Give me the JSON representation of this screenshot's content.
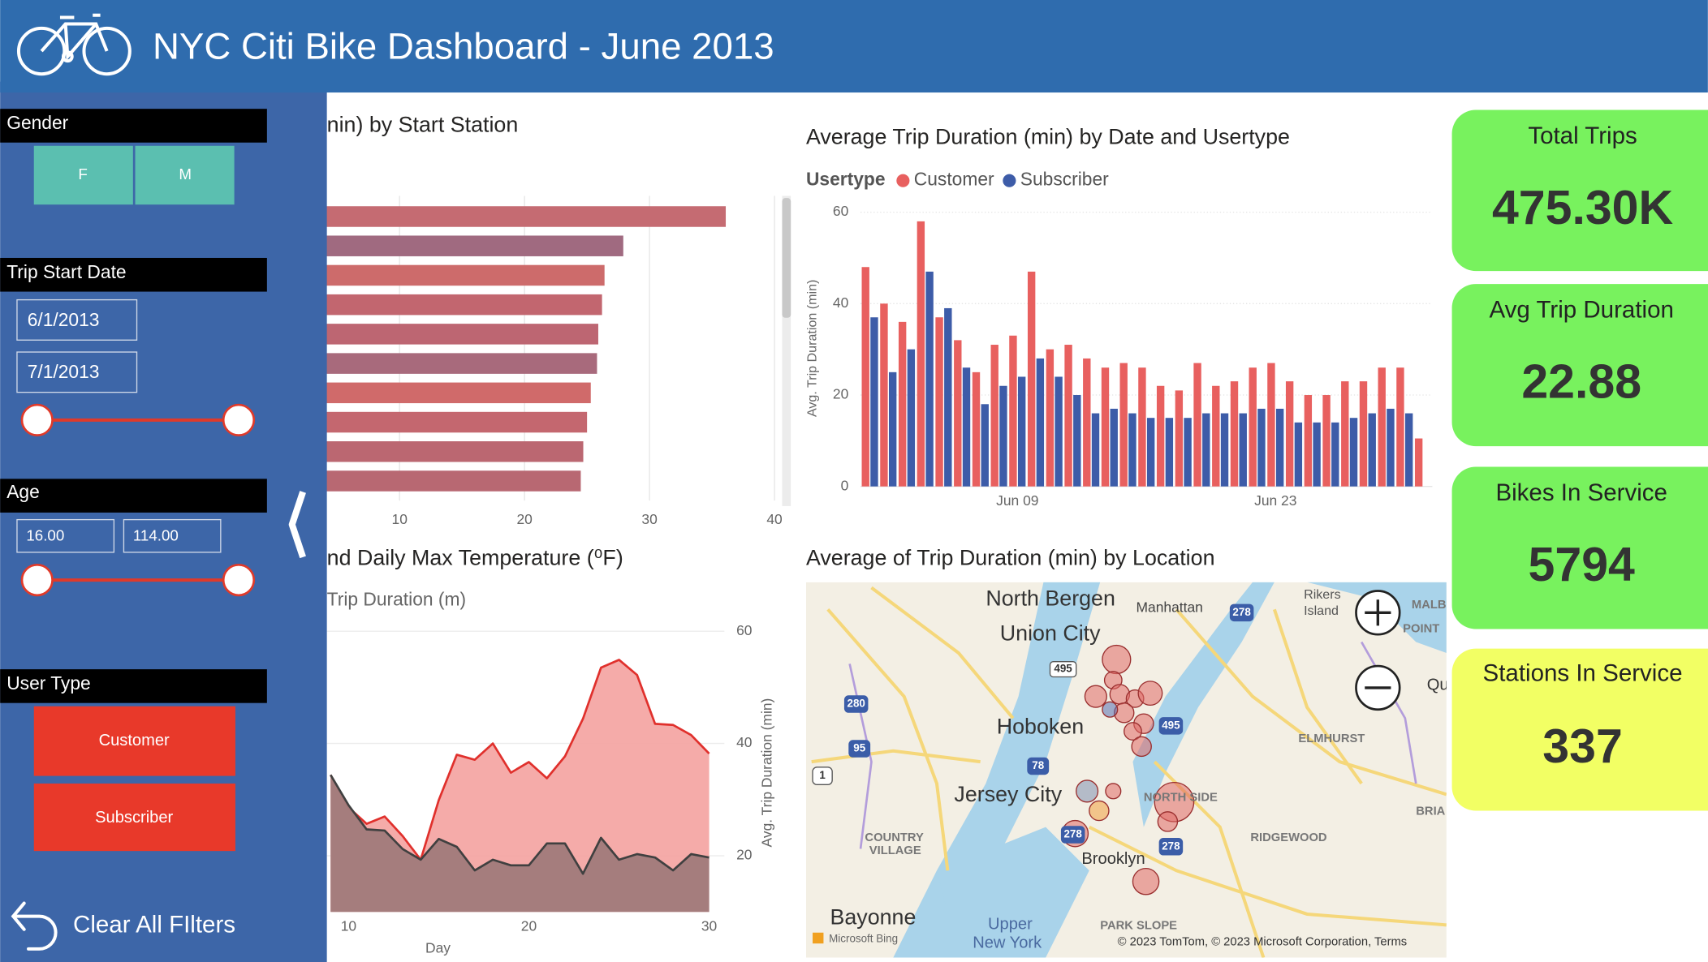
{
  "header": {
    "title": "NYC Citi Bike Dashboard - June 2013"
  },
  "filters": {
    "gender": {
      "label": "Gender",
      "options": [
        "F",
        "M"
      ]
    },
    "date": {
      "label": "Trip Start Date",
      "start": "6/1/2013",
      "end": "7/1/2013"
    },
    "age": {
      "label": "Age",
      "min": "16.00",
      "max": "114.00"
    },
    "user_type": {
      "label": "User Type",
      "options": [
        "Customer",
        "Subscriber"
      ]
    },
    "clear": "Clear All FIlters"
  },
  "chart_data": [
    {
      "type": "bar",
      "orientation": "horizontal",
      "title": "nin) by Start Station",
      "categories": [
        null,
        null,
        null,
        null,
        null,
        null,
        null,
        null,
        null,
        null
      ],
      "values": [
        36.1,
        27.9,
        26.4,
        26.2,
        25.9,
        25.8,
        25.3,
        25.0,
        24.7,
        24.5
      ],
      "colors": [
        "#c56b72",
        "#a06a80",
        "#cd6b6b",
        "#c2666f",
        "#bd6672",
        "#a86a7c",
        "#d06a6a",
        "#c4676f",
        "#bb6771",
        "#b86872"
      ],
      "xlim": [
        0,
        40
      ],
      "xticks": [
        10,
        20,
        30,
        40
      ],
      "grid": true
    },
    {
      "type": "bar",
      "title": "Average Trip Duration (min) by Date and Usertype",
      "legend_title": "Usertype",
      "ylabel": "Avg. Trip Duration (min)",
      "categories": [
        null,
        null,
        null,
        null,
        null,
        null,
        null,
        null,
        "Jun 09",
        null,
        null,
        null,
        null,
        null,
        null,
        null,
        null,
        null,
        null,
        null,
        null,
        null,
        "Jun 23",
        null,
        null,
        null,
        null,
        null,
        null,
        null,
        null
      ],
      "series": [
        {
          "name": "Customer",
          "color": "#e8605f",
          "values": [
            48,
            40,
            36,
            58,
            37,
            32,
            25,
            31,
            33,
            47,
            30,
            31,
            28,
            26,
            27,
            26,
            22,
            21,
            27,
            22,
            23,
            26,
            27,
            23,
            20,
            20,
            23,
            23,
            26,
            26,
            10.5
          ]
        },
        {
          "name": "Subscriber",
          "color": "#3d5ca8",
          "values": [
            37,
            25,
            30,
            47,
            39,
            26,
            18,
            22,
            24,
            28,
            24,
            20,
            16,
            17,
            16,
            15,
            15,
            15,
            16,
            16,
            16,
            17,
            17,
            14,
            14,
            14,
            15,
            16,
            17,
            16,
            null
          ]
        }
      ],
      "ylim": [
        0,
        60
      ],
      "yticks": [
        0,
        20,
        40,
        60
      ],
      "grid": true
    },
    {
      "type": "area",
      "title": "nd Daily Max Temperature (⁰F)",
      "subtitle": "Trip Duration (m)",
      "xlabel": "Day",
      "y2label": "Avg. Trip Duration (min)",
      "x": [
        9,
        10,
        11,
        12,
        13,
        14,
        15,
        16,
        17,
        18,
        19,
        20,
        21,
        22,
        23,
        24,
        25,
        26,
        27,
        28,
        29,
        30
      ],
      "series": [
        {
          "color": "#e0302c",
          "fill": "#f4a6a4",
          "axis": "y2",
          "values": [
            34.4,
            28.6,
            25.7,
            27,
            23.5,
            19.3,
            29.9,
            38,
            37.1,
            40,
            34.8,
            36.7,
            33.8,
            37.7,
            44.4,
            53.5,
            54.9,
            52.2,
            43.5,
            43.3,
            41.5,
            38.2
          ]
        },
        {
          "color": "#404040",
          "fill": "#a07a7a",
          "axis": "y2",
          "values": [
            34.4,
            29,
            24.7,
            24.5,
            21.2,
            19.3,
            23,
            21.6,
            17.4,
            19.3,
            18.3,
            18.3,
            22.2,
            22.2,
            16.8,
            23.2,
            19.3,
            20.3,
            19.7,
            17.4,
            20.3,
            19.7
          ]
        }
      ],
      "xlim": [
        1,
        30
      ],
      "xticks": [
        10,
        20,
        30
      ],
      "y2lim": [
        10,
        60
      ],
      "y2ticks": [
        20,
        40,
        60
      ],
      "grid": true
    }
  ],
  "map": {
    "title": "Average of Trip Duration (min) by Location",
    "labels": [
      "North Bergen",
      "Manhattan",
      "Rikers",
      "Island",
      "MALB",
      "POINT",
      "Union City",
      "Qu",
      "Hoboken",
      "ELMHURST",
      "Jersey City",
      "NORTH SIDE",
      "COUNTRY",
      "VILLAGE",
      "Brooklyn",
      "RIDGEWOOD",
      "BRIA",
      "Bayonne",
      "Upper",
      "New York",
      "PARK SLOPE",
      "Microsoft Bing",
      "© 2023 TomTom, © 2023 Microsoft Corporation, Terms"
    ],
    "shields": [
      "495",
      "278",
      "280",
      "95",
      "1",
      "78",
      "495",
      "278",
      "278"
    ]
  },
  "cards": [
    {
      "label": "Total Trips",
      "value": "475.30K"
    },
    {
      "label": "Avg Trip Duration",
      "value": "22.88"
    },
    {
      "label": "Bikes In Service",
      "value": "5794"
    },
    {
      "label": "Stations In Service",
      "value": "337"
    }
  ]
}
